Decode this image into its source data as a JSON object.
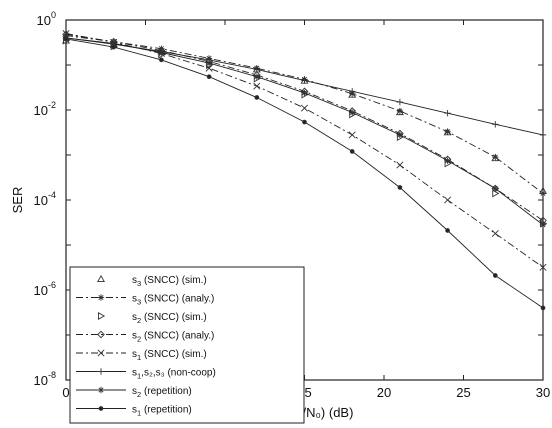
{
  "chart_data": {
    "type": "line",
    "title": "",
    "xlabel": "SNR (a²/N₀) (dB)",
    "ylabel": "SER",
    "xlim": [
      0,
      30
    ],
    "ylim": [
      1e-08,
      1
    ],
    "yscale": "log",
    "x_ticks": [
      "0",
      "5",
      "10",
      "15",
      "20",
      "25",
      "30"
    ],
    "y_ticks": [
      {
        "base": "10",
        "exp": "0"
      },
      {
        "base": "10",
        "exp": "-2"
      },
      {
        "base": "10",
        "exp": "-4"
      },
      {
        "base": "10",
        "exp": "-6"
      },
      {
        "base": "10",
        "exp": "-8"
      }
    ],
    "grid": false,
    "legend_position": "bottom-left",
    "series": [
      {
        "name": "s3 (SNCC) (sim.)",
        "label_base": "s",
        "label_sub": "3",
        "label_rest": " (SNCC) (sim.)",
        "line": "none",
        "marker": "triangle-up",
        "x": [
          0,
          3,
          6,
          9,
          12,
          15,
          18,
          21,
          24,
          27,
          30
        ],
        "y": [
          0.35,
          0.28,
          0.2,
          0.13,
          0.08,
          0.045,
          0.022,
          0.009,
          0.0032,
          0.00085,
          0.00016
        ]
      },
      {
        "name": "s3 (SNCC) (analy.)",
        "label_base": "s",
        "label_sub": "3",
        "label_rest": " (SNCC) (analy.)",
        "line": "dashdot",
        "marker": "star",
        "x": [
          0,
          3,
          6,
          9,
          12,
          15,
          18,
          21,
          24,
          27,
          30
        ],
        "y": [
          0.45,
          0.33,
          0.23,
          0.14,
          0.085,
          0.048,
          0.023,
          0.0095,
          0.0033,
          0.0009,
          0.00014
        ]
      },
      {
        "name": "s2 (SNCC) (sim.)",
        "label_base": "s",
        "label_sub": "2",
        "label_rest": " (SNCC) (sim.)",
        "line": "none",
        "marker": "triangle-right",
        "x": [
          0,
          3,
          6,
          9,
          12,
          15,
          18,
          21,
          24,
          27,
          30
        ],
        "y": [
          0.35,
          0.26,
          0.17,
          0.1,
          0.05,
          0.022,
          0.008,
          0.0025,
          0.00065,
          0.00014,
          3e-05
        ]
      },
      {
        "name": "s2 (SNCC) (analy.)",
        "label_base": "s",
        "label_sub": "2",
        "label_rest": " (SNCC) (analy.)",
        "line": "dashdot",
        "marker": "diamond",
        "x": [
          0,
          3,
          6,
          9,
          12,
          15,
          18,
          21,
          24,
          27,
          30
        ],
        "y": [
          0.48,
          0.33,
          0.21,
          0.12,
          0.06,
          0.026,
          0.0095,
          0.003,
          0.0008,
          0.00018,
          3.5e-05
        ]
      },
      {
        "name": "s1 (SNCC) (sim.)",
        "label_base": "s",
        "label_sub": "1",
        "label_rest": " (SNCC) (sim.)",
        "line": "dashdot",
        "marker": "x",
        "x": [
          0,
          3,
          6,
          9,
          12,
          15,
          18,
          21,
          24,
          27,
          30
        ],
        "y": [
          0.5,
          0.32,
          0.18,
          0.085,
          0.034,
          0.011,
          0.0028,
          0.0006,
          0.0001,
          1.8e-05,
          3.2e-06
        ]
      },
      {
        "name": "s1,s2,s3 (non-coop)",
        "label_base": "s",
        "label_sub": "1",
        "label_rest": ",s₂,s₃ (non-coop)",
        "line": "solid",
        "marker": "plus",
        "x": [
          0,
          3,
          6,
          9,
          12,
          15,
          18,
          21,
          24,
          27,
          30
        ],
        "y": [
          0.4,
          0.29,
          0.2,
          0.13,
          0.08,
          0.045,
          0.026,
          0.015,
          0.0085,
          0.0048,
          0.0028
        ]
      },
      {
        "name": "s2 (repetition)",
        "label_base": "s",
        "label_sub": "2",
        "label_rest": " (repetition)",
        "line": "solid",
        "marker": "star",
        "x": [
          0,
          3,
          6,
          9,
          12,
          15,
          18,
          21,
          24,
          27,
          30
        ],
        "y": [
          0.4,
          0.3,
          0.19,
          0.11,
          0.055,
          0.024,
          0.0088,
          0.0028,
          0.00075,
          0.00018,
          2.8e-05
        ]
      },
      {
        "name": "s1 (repetition)",
        "label_base": "s",
        "label_sub": "1",
        "label_rest": " (repetition)",
        "line": "solid",
        "marker": "dot",
        "x": [
          0,
          3,
          6,
          9,
          12,
          15,
          18,
          21,
          24,
          27,
          30
        ],
        "y": [
          0.38,
          0.25,
          0.13,
          0.055,
          0.019,
          0.0054,
          0.0012,
          0.00019,
          2.1e-05,
          2.1e-06,
          4e-07
        ]
      }
    ]
  }
}
